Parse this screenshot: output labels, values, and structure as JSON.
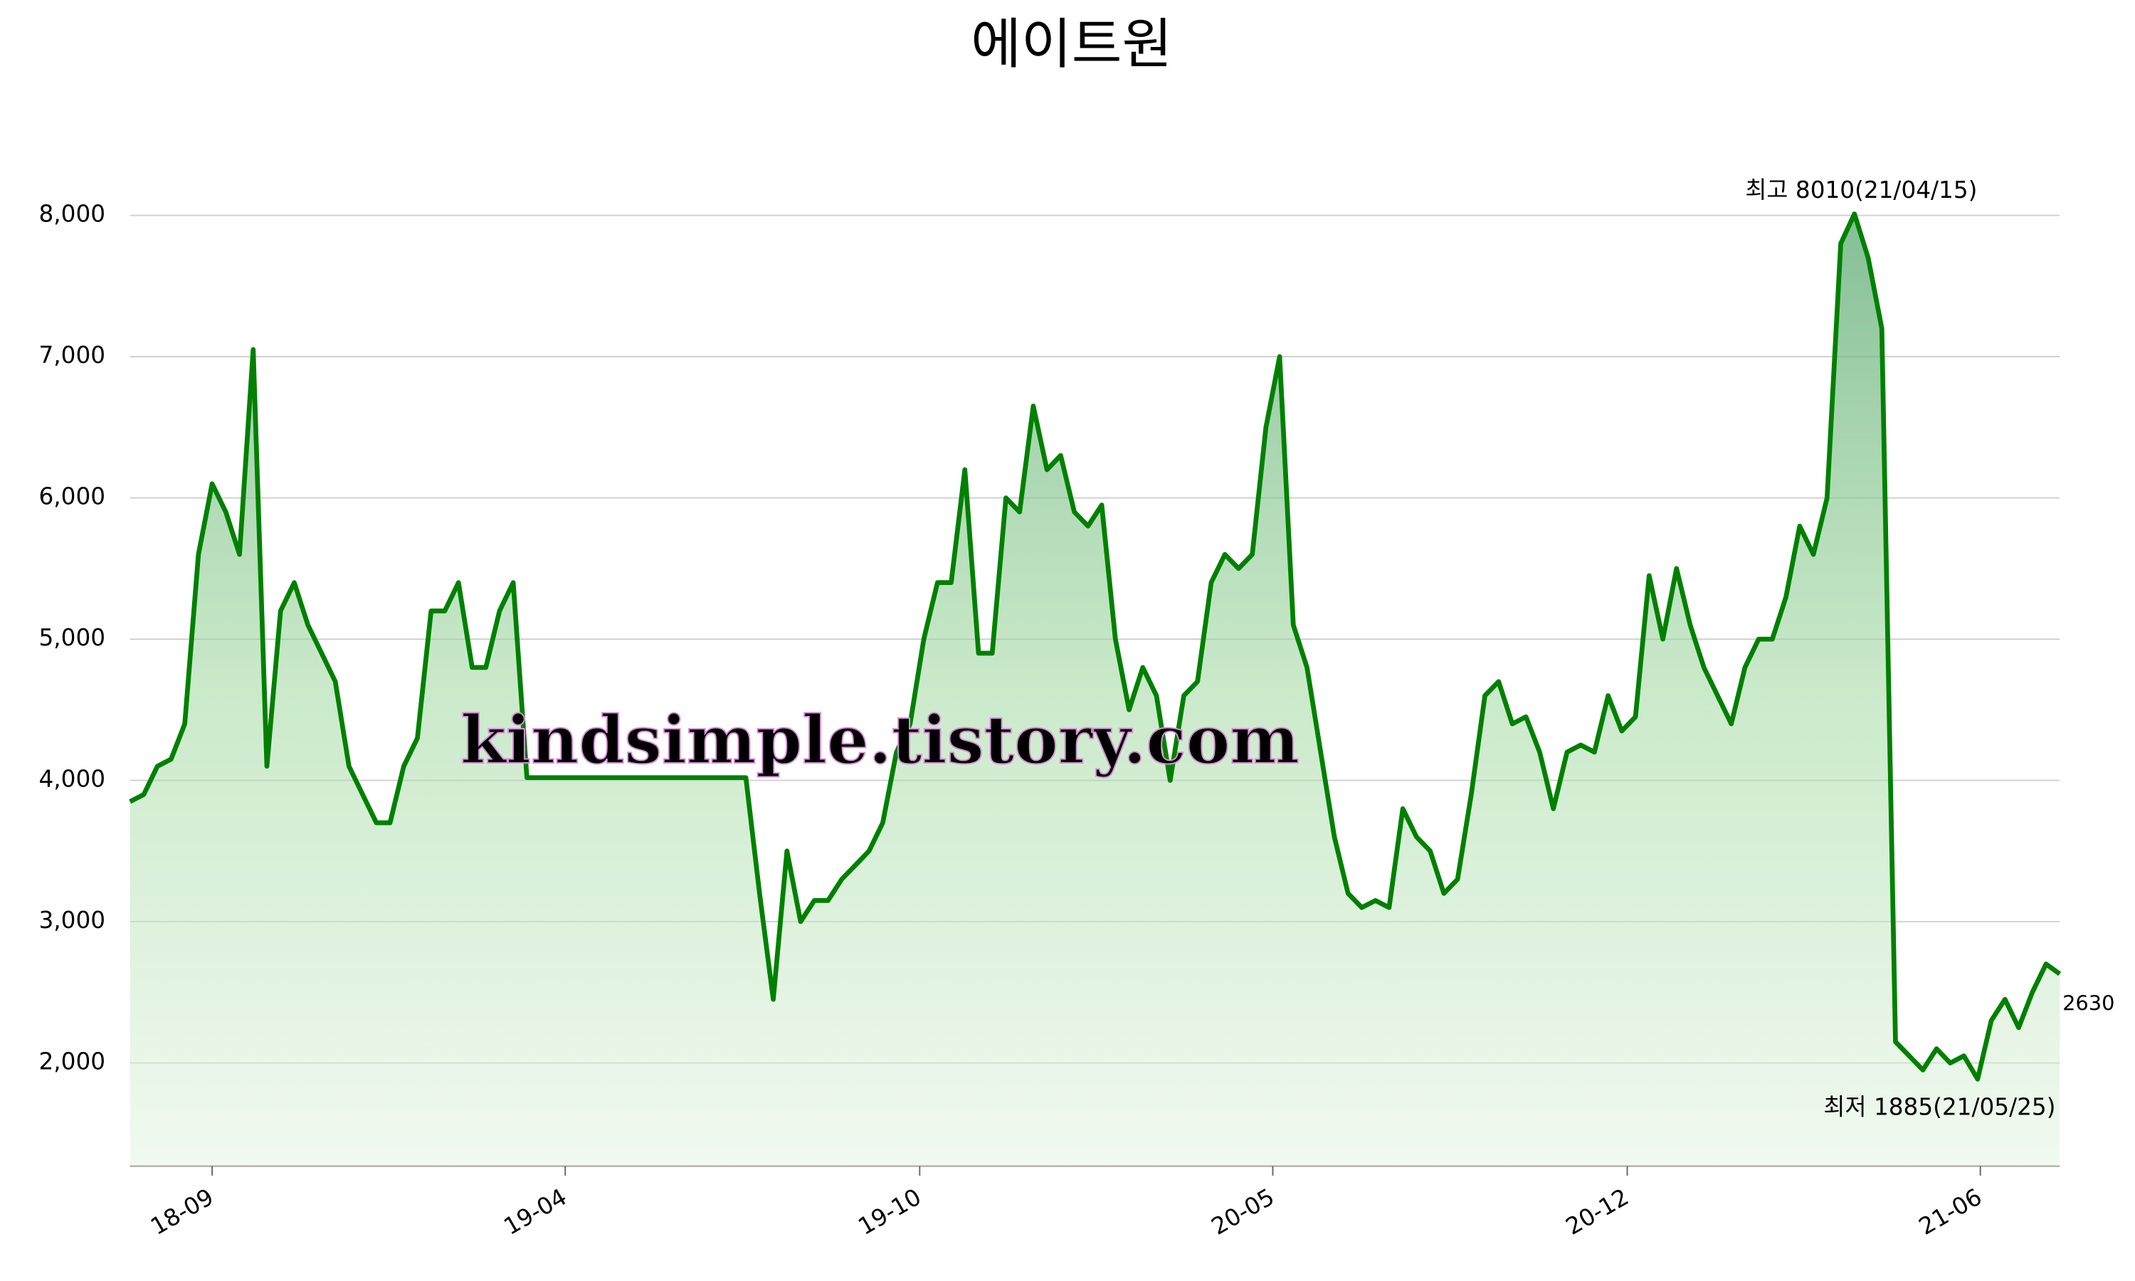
{
  "chart_data": {
    "type": "line",
    "title": "에이트원",
    "watermark": "kindsimple.tistory.com",
    "color": "#008000",
    "grid": true,
    "values": [
      3850,
      3900,
      4100,
      4150,
      4400,
      5600,
      6100,
      5900,
      5600,
      7050,
      4100,
      5200,
      5400,
      5100,
      4900,
      4700,
      4100,
      3900,
      3700,
      3700,
      4100,
      4300,
      5200,
      5200,
      5400,
      4800,
      4800,
      5200,
      5400,
      4020,
      4020,
      4020,
      4020,
      4020,
      4020,
      4020,
      4020,
      4020,
      4020,
      4020,
      4020,
      4020,
      4020,
      4020,
      4020,
      4020,
      3200,
      2450,
      3500,
      3000,
      3150,
      3150,
      3300,
      3400,
      3500,
      3700,
      4200,
      4400,
      5000,
      5400,
      5400,
      6200,
      4900,
      4900,
      6000,
      5900,
      6650,
      6200,
      6300,
      5900,
      5800,
      5950,
      5000,
      4500,
      4800,
      4600,
      4000,
      4600,
      4700,
      5400,
      5600,
      5500,
      5600,
      6500,
      7000,
      5100,
      4800,
      4200,
      3600,
      3200,
      3100,
      3150,
      3100,
      3800,
      3600,
      3500,
      3200,
      3300,
      3900,
      4600,
      4700,
      4400,
      4450,
      4200,
      3800,
      4200,
      4250,
      4200,
      4600,
      4350,
      4450,
      5450,
      5000,
      5500,
      5100,
      4800,
      4600,
      4400,
      4800,
      5000,
      5000,
      5300,
      5800,
      5600,
      6000,
      7800,
      8010,
      7700,
      7200,
      2150,
      2050,
      1950,
      2100,
      2000,
      2050,
      1885,
      2300,
      2450,
      2250,
      2500,
      2700,
      2630
    ],
    "xlim": [
      0,
      141
    ],
    "xticks": [
      {
        "value": 6,
        "label": "18-09"
      },
      {
        "value": 31.8,
        "label": "19-04"
      },
      {
        "value": 57.7,
        "label": "19-10"
      },
      {
        "value": 83.5,
        "label": "20-05"
      },
      {
        "value": 109.4,
        "label": "20-12"
      },
      {
        "value": 135.2,
        "label": "21-06"
      }
    ],
    "ylim": [
      1270,
      8430
    ],
    "yticks": [
      {
        "value": 2000,
        "label": "2,000"
      },
      {
        "value": 3000,
        "label": "3,000"
      },
      {
        "value": 4000,
        "label": "4,000"
      },
      {
        "value": 5000,
        "label": "5,000"
      },
      {
        "value": 6000,
        "label": "6,000"
      },
      {
        "value": 7000,
        "label": "7,000"
      },
      {
        "value": 8000,
        "label": "8,000"
      }
    ],
    "annotations": [
      {
        "text": "최고 8010(21/04/15)",
        "color": "#ff0000"
      },
      {
        "text": "최저 1885(21/05/25)",
        "color": "#0000ff"
      },
      {
        "text": "2630",
        "color": "#000000"
      }
    ]
  }
}
